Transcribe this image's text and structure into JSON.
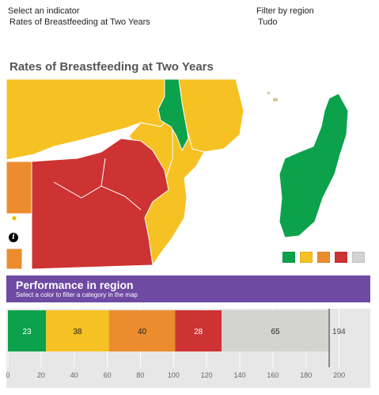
{
  "filters": {
    "indicator_label": "Select an indicator",
    "indicator_value": "Rates of Breastfeeding at Two Years",
    "region_label": "Filter by region",
    "region_value": "Tudo"
  },
  "map": {
    "title": "Rates of Breastfeeding at Two Years",
    "legend": [
      {
        "color": "#0ca24c",
        "name": "green"
      },
      {
        "color": "#f6c122",
        "name": "yellow"
      },
      {
        "color": "#ec8c2c",
        "name": "orange"
      },
      {
        "color": "#cd3332",
        "name": "red"
      },
      {
        "color": "#d3d3d3",
        "name": "grey"
      }
    ],
    "icons": {
      "pin": "lightbulb-pin-icon",
      "info": "info-icon"
    }
  },
  "performance": {
    "title": "Performance in region",
    "subtitle": "Select a color to filter a category in the map"
  },
  "chart_data": {
    "type": "bar",
    "orientation": "horizontal-stacked",
    "categories": [
      "green",
      "yellow",
      "orange",
      "red",
      "grey"
    ],
    "values": [
      23,
      38,
      40,
      28,
      65
    ],
    "colors": [
      "#0ca24c",
      "#f6c122",
      "#ec8c2c",
      "#cd3332",
      "#d3d3cf"
    ],
    "total_label": "194",
    "total": 194,
    "xlim": [
      0,
      215
    ],
    "ticks": [
      0,
      20,
      40,
      60,
      80,
      100,
      120,
      140,
      160,
      180,
      200
    ],
    "grid": true
  }
}
